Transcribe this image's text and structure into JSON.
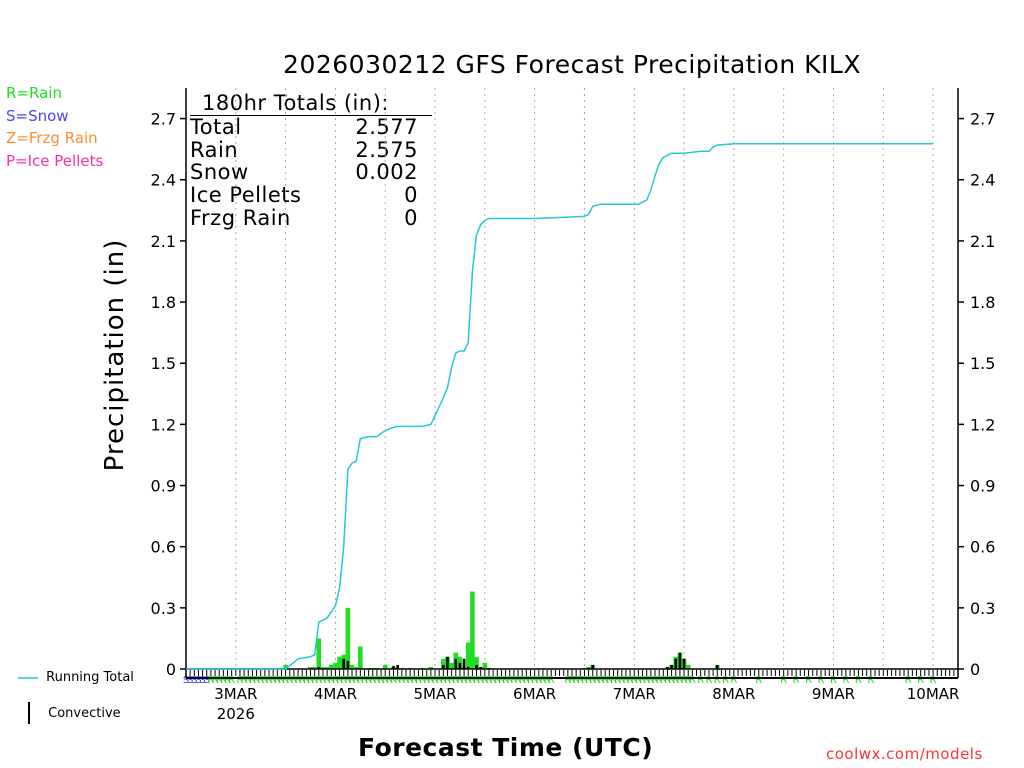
{
  "page": {
    "title": "2026030212 GFS Forecast Precipitation KILX",
    "credit": "coolwx.com/models"
  },
  "colors": {
    "rain": "#22dd22",
    "snow": "#4444ff",
    "frzg_rain": "#ff8c33",
    "ice_pellets": "#ff2fa0",
    "running_total": "#22c8d8",
    "convective": "#000000",
    "credit": "#ff3333"
  },
  "legend_types": [
    {
      "key": "rain",
      "label": "R=Rain"
    },
    {
      "key": "snow",
      "label": "S=Snow"
    },
    {
      "key": "frzg_rain",
      "label": "Z=Frzg Rain"
    },
    {
      "key": "ice_pellets",
      "label": "P=Ice Pellets"
    }
  ],
  "legend_series": {
    "running_total": "Running Total",
    "convective": "Convective"
  },
  "totals": {
    "header": "180hr Totals (in):",
    "rows": [
      {
        "label": "Total",
        "value": "2.577"
      },
      {
        "label": "Rain",
        "value": "2.575"
      },
      {
        "label": "Snow",
        "value": "0.002"
      },
      {
        "label": "Ice Pellets",
        "value": "0"
      },
      {
        "label": "Frzg Rain",
        "value": "0"
      }
    ]
  },
  "chart_data": {
    "type": "bar",
    "title": "2026030212 GFS Forecast Precipitation KILX",
    "xlabel": "Forecast Time (UTC)",
    "ylabel": "Precipitation (in)",
    "ylim": [
      0,
      2.85
    ],
    "xlim_hours": [
      0,
      186
    ],
    "yticks": [
      0,
      0.3,
      0.6,
      0.9,
      1.2,
      1.5,
      1.8,
      2.1,
      2.4,
      2.7
    ],
    "ytick_labels": [
      "0",
      "0.3",
      "0.6",
      "0.9",
      "1.2",
      "1.5",
      "1.8",
      "2.1",
      "2.4",
      "2.7"
    ],
    "xticks": [
      {
        "hour": 12,
        "label": "3MAR",
        "sub": "2026"
      },
      {
        "hour": 36,
        "label": "4MAR"
      },
      {
        "hour": 60,
        "label": "5MAR"
      },
      {
        "hour": 84,
        "label": "6MAR"
      },
      {
        "hour": 108,
        "label": "7MAR"
      },
      {
        "hour": 132,
        "label": "8MAR"
      },
      {
        "hour": 156,
        "label": "9MAR"
      },
      {
        "hour": 180,
        "label": "10MAR"
      }
    ],
    "series": [
      {
        "name": "Running Total",
        "type": "line",
        "x": [
          0,
          12,
          24,
          27,
          30,
          31,
          32,
          33,
          34,
          35,
          36,
          37,
          38,
          39,
          40,
          41,
          42,
          44,
          45,
          46,
          48,
          50,
          51,
          52,
          54,
          57,
          59,
          62,
          63,
          64,
          65,
          66,
          67,
          68,
          69,
          70,
          71,
          72,
          73,
          74,
          75,
          84,
          96,
          97,
          98,
          100,
          104,
          106,
          107,
          108,
          109,
          110,
          111,
          112,
          113,
          114,
          115,
          116,
          117,
          118,
          120,
          124,
          125,
          126,
          127,
          128,
          132,
          180
        ],
        "values": [
          0,
          0,
          0,
          0.05,
          0.06,
          0.07,
          0.23,
          0.24,
          0.25,
          0.28,
          0.31,
          0.4,
          0.6,
          0.98,
          1.01,
          1.02,
          1.13,
          1.14,
          1.14,
          1.14,
          1.17,
          1.185,
          1.19,
          1.19,
          1.19,
          1.19,
          1.2,
          1.33,
          1.38,
          1.48,
          1.55,
          1.56,
          1.56,
          1.6,
          1.95,
          2.13,
          2.18,
          2.2,
          2.21,
          2.21,
          2.21,
          2.21,
          2.22,
          2.23,
          2.27,
          2.28,
          2.28,
          2.28,
          2.28,
          2.28,
          2.28,
          2.29,
          2.3,
          2.35,
          2.42,
          2.48,
          2.51,
          2.52,
          2.53,
          2.53,
          2.53,
          2.54,
          2.54,
          2.54,
          2.56,
          2.57,
          2.577,
          2.577
        ]
      },
      {
        "name": "Precipitation",
        "type": "bar",
        "x": [
          24,
          30,
          31,
          32,
          33,
          34,
          35,
          36,
          37,
          38,
          39,
          40,
          41,
          42,
          44,
          45,
          46,
          48,
          50,
          51,
          52,
          54,
          57,
          59,
          62,
          63,
          64,
          65,
          66,
          67,
          68,
          69,
          70,
          71,
          72,
          73,
          96,
          97,
          98,
          116,
          117,
          118,
          119,
          120,
          121,
          128
        ],
        "values": [
          0.02,
          0.01,
          0.01,
          0.15,
          0.01,
          0.01,
          0.02,
          0.03,
          0.06,
          0.07,
          0.3,
          0.02,
          0.01,
          0.11,
          0.005,
          0.005,
          0.005,
          0.02,
          0.01,
          0.005,
          0.005,
          0.005,
          0.005,
          0.01,
          0.05,
          0.06,
          0.03,
          0.08,
          0.06,
          0.01,
          0.13,
          0.38,
          0.06,
          0.01,
          0.03,
          0.005,
          0.005,
          0.01,
          0.02,
          0.01,
          0.02,
          0.06,
          0.08,
          0.05,
          0.02,
          0.02
        ]
      },
      {
        "name": "Convective",
        "type": "bar",
        "x": [
          32,
          38,
          39,
          42,
          50,
          51,
          62,
          63,
          65,
          66,
          67,
          68,
          70,
          71,
          73,
          97,
          98,
          116,
          117,
          118,
          119,
          120,
          128
        ],
        "values": [
          0.01,
          0.05,
          0.04,
          0.005,
          0.015,
          0.02,
          0.02,
          0.06,
          0.05,
          0.03,
          0.05,
          0.01,
          0.02,
          0.01,
          0.005,
          0.005,
          0.02,
          0.01,
          0.02,
          0.05,
          0.08,
          0.05,
          0.02
        ]
      }
    ],
    "ptype_strip": {
      "hours": [
        0,
        1,
        2,
        3,
        4,
        5,
        6,
        7,
        8,
        9,
        10,
        11,
        13,
        14,
        15,
        16,
        17,
        18,
        19,
        20,
        21,
        22,
        23,
        24,
        25,
        26,
        27,
        28,
        29,
        30,
        31,
        32,
        33,
        34,
        35,
        36,
        37,
        38,
        39,
        40,
        41,
        42,
        43,
        44,
        45,
        46,
        47,
        48,
        49,
        50,
        51,
        52,
        53,
        54,
        55,
        56,
        57,
        58,
        59,
        60,
        61,
        62,
        63,
        64,
        65,
        66,
        67,
        68,
        69,
        70,
        71,
        72,
        73,
        74,
        75,
        76,
        77,
        78,
        79,
        80,
        81,
        82,
        83,
        84,
        85,
        86,
        87,
        88,
        92,
        93,
        94,
        95,
        96,
        97,
        98,
        99,
        100,
        101,
        102,
        103,
        104,
        105,
        106,
        107,
        108,
        109,
        110,
        111,
        112,
        113,
        114,
        115,
        116,
        117,
        118,
        119,
        120,
        121,
        122,
        124,
        126,
        128,
        130,
        132,
        138,
        144,
        147,
        150,
        153,
        156,
        159,
        162,
        165,
        174,
        177,
        180
      ],
      "types": "SSSSSSRRRRRRRRRRRRRRRRRRRRRRRRRRRRRRRRRRRRRRRRRRRRRRRRRRRRRRRRRRRRRRRRRRRRRRRRRRRRRRRRRRRRRRRRRRRRRRRRRRRRRRRRRRRRRRRRRRRRRRRRRRRRRRRRRRRRRR"
    }
  }
}
